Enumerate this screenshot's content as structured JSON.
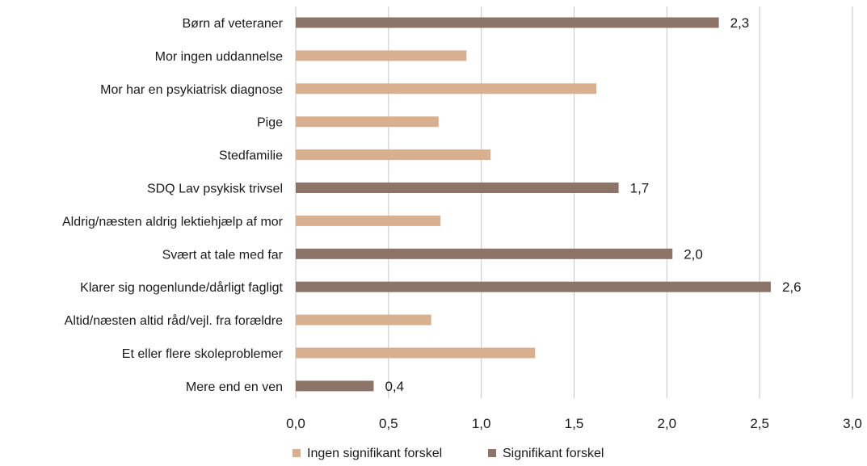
{
  "chart_data": {
    "type": "bar",
    "orientation": "horizontal",
    "categories": [
      "Børn af veteraner",
      "Mor ingen uddannelse",
      "Mor har en psykiatrisk diagnose",
      "Pige",
      "Stedfamilie",
      "SDQ Lav psykisk trivsel",
      "Aldrig/næsten aldrig lektiehjælp af mor",
      "Svært at tale med far",
      "Klarer sig nogenlunde/dårligt fagligt",
      "Altid/næsten altid råd/vejl. fra forældre",
      "Et eller flere skoleproblemer",
      "Mere end en ven"
    ],
    "values": [
      2.28,
      0.92,
      1.62,
      0.77,
      1.05,
      1.74,
      0.78,
      2.03,
      2.56,
      0.73,
      1.29,
      0.42
    ],
    "significant": [
      true,
      false,
      false,
      false,
      false,
      true,
      false,
      true,
      true,
      false,
      false,
      true
    ],
    "data_labels": [
      "2,3",
      "",
      "",
      "",
      "",
      "1,7",
      "",
      "2,0",
      "2,6",
      "",
      "",
      "0,4"
    ],
    "xlim": [
      0,
      3.0
    ],
    "xticks": [
      0,
      0.5,
      1.0,
      1.5,
      2.0,
      2.5,
      3.0
    ],
    "xtick_labels": [
      "0,0",
      "0,5",
      "1,0",
      "1,5",
      "2,0",
      "2,5",
      "3,0"
    ],
    "grid": true,
    "legend_position": "bottom",
    "series": [
      {
        "name": "Ingen signifikant forskel",
        "color": "#d8b090"
      },
      {
        "name": "Signifikant forskel",
        "color": "#8c7468"
      }
    ],
    "title": "",
    "xlabel": "",
    "ylabel": ""
  }
}
